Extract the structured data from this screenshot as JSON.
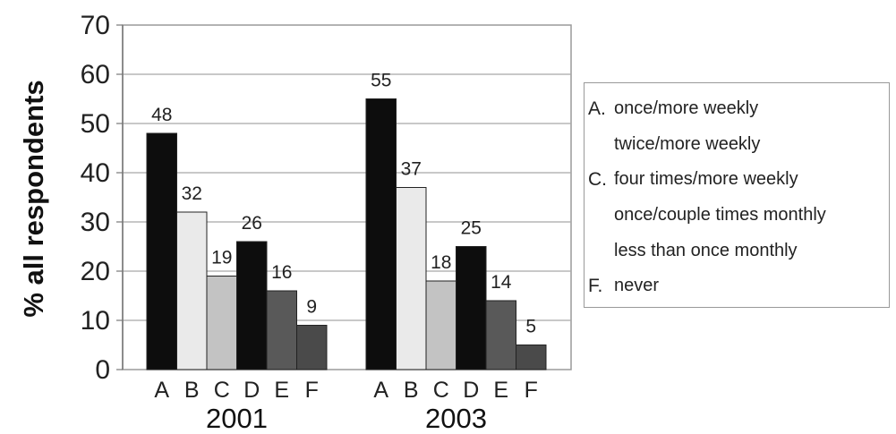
{
  "chart_data": {
    "type": "bar",
    "ylabel": "% all respondents",
    "ylim": [
      0,
      70
    ],
    "yticks": [
      "0",
      "10",
      "20",
      "30",
      "40",
      "50",
      "60",
      "70"
    ],
    "grid": true,
    "legend_position": "right",
    "groups": [
      {
        "name": "2001",
        "categories": [
          "A",
          "B",
          "C",
          "D",
          "E",
          "F"
        ],
        "values": [
          48,
          32,
          19,
          26,
          16,
          9
        ],
        "labels": [
          "48",
          "32",
          "19",
          "26",
          "16",
          "9"
        ]
      },
      {
        "name": "2003",
        "categories": [
          "A",
          "B",
          "C",
          "D",
          "E",
          "F"
        ],
        "values": [
          55,
          37,
          18,
          25,
          14,
          5
        ],
        "labels": [
          "55",
          "37",
          "18",
          "25",
          "14",
          "5"
        ]
      }
    ],
    "category_colors": [
      "#0d0d0d",
      "#eaeaea",
      "#c3c3c3",
      "#0d0d0d",
      "#595959",
      "#4a4a4a"
    ],
    "legend": [
      {
        "key": "A.",
        "label": "once/more weekly"
      },
      {
        "key": "",
        "label": "twice/more weekly"
      },
      {
        "key": "C.",
        "label": "four times/more weekly"
      },
      {
        "key": "",
        "label": "once/couple times monthly"
      },
      {
        "key": "",
        "label": "less than once monthly"
      },
      {
        "key": "F.",
        "label": "never"
      }
    ]
  }
}
